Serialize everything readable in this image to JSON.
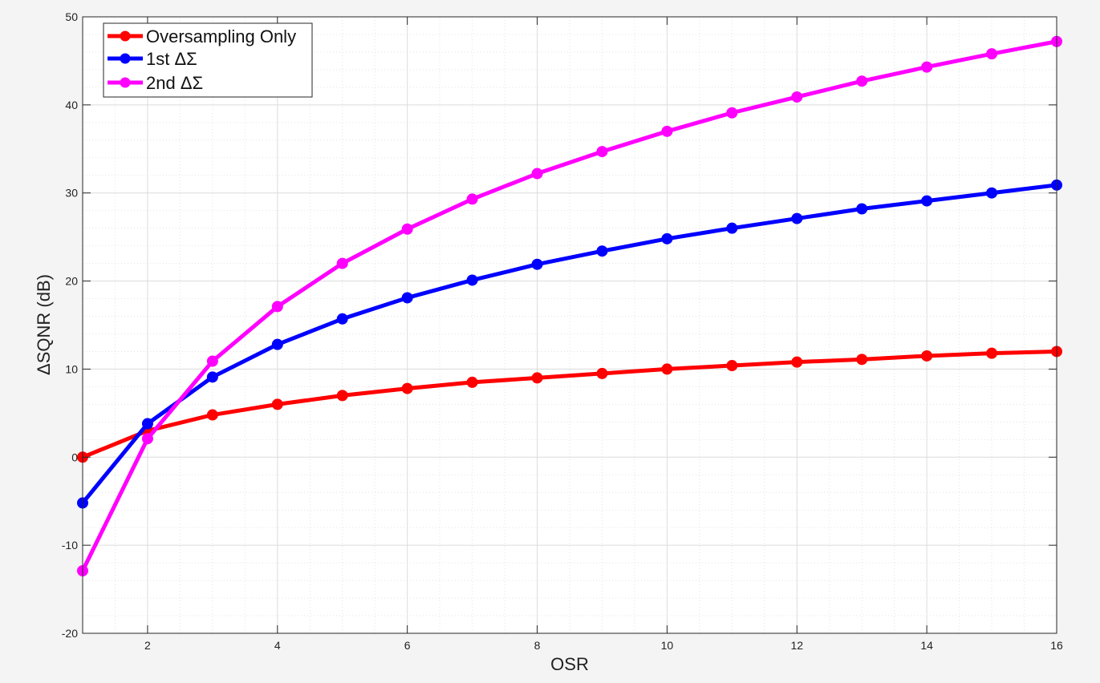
{
  "chart_data": {
    "type": "line",
    "title": "",
    "xlabel": "OSR",
    "ylabel": "ΔSQNR  (dB)",
    "xlim": [
      1,
      16
    ],
    "ylim": [
      -20,
      50
    ],
    "xticks": [
      2,
      4,
      6,
      8,
      10,
      12,
      14,
      16
    ],
    "yticks": [
      -20,
      -10,
      0,
      10,
      20,
      30,
      40,
      50
    ],
    "grid": true,
    "minor_grid": true,
    "legend_position": "top-left",
    "x": [
      1,
      2,
      3,
      4,
      5,
      6,
      7,
      8,
      9,
      10,
      11,
      12,
      13,
      14,
      15,
      16
    ],
    "series": [
      {
        "name": "Oversampling Only",
        "color": "#ff0000",
        "values": [
          0,
          3.0,
          4.8,
          6.0,
          7.0,
          7.8,
          8.5,
          9.0,
          9.5,
          10.0,
          10.4,
          10.8,
          11.1,
          11.5,
          11.8,
          12.0
        ]
      },
      {
        "name": "1st  ΔΣ",
        "color": "#0000ff",
        "values": [
          -5.2,
          3.8,
          9.1,
          12.8,
          15.7,
          18.1,
          20.1,
          21.9,
          23.4,
          24.8,
          26.0,
          27.1,
          28.2,
          29.1,
          30.0,
          30.9
        ]
      },
      {
        "name": "2nd  ΔΣ",
        "color": "#ff00ff",
        "values": [
          -12.9,
          2.1,
          10.9,
          17.1,
          22.0,
          25.9,
          29.3,
          32.2,
          34.7,
          37.0,
          39.1,
          40.9,
          42.7,
          44.3,
          45.8,
          47.2
        ]
      }
    ]
  }
}
